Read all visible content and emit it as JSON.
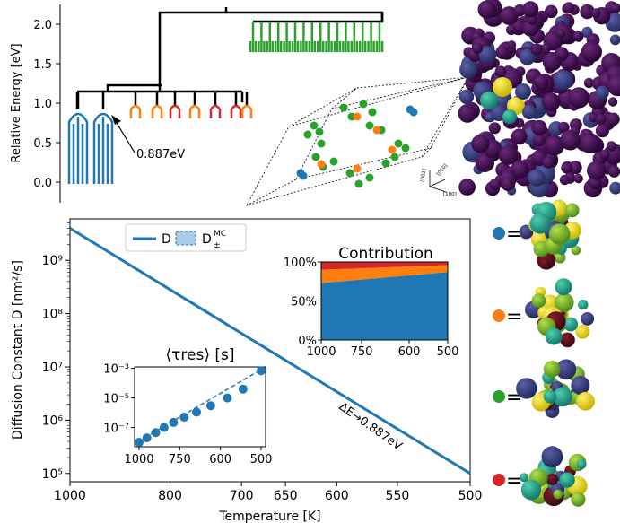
{
  "colors": {
    "blue": "#1f77b4",
    "orange": "#ff7f0e",
    "green": "#2ca02c",
    "red": "#d62728",
    "dark_red": "#b22222",
    "purple": "#3b0a4f"
  },
  "top_panel": {
    "ylabel": "Relative Energy [eV]",
    "ticks": [
      "0.0",
      "0.5",
      "1.0",
      "1.5",
      "2.0"
    ],
    "annotation": "0.887eV",
    "axes_labels": [
      "[001]",
      "[010]",
      "[100]"
    ]
  },
  "legend": {
    "d_label": "D",
    "dmc_label": "D",
    "dmc_sup": "MC",
    "dmc_sub": "±"
  },
  "annotation_line": "ΔE→0.887eV",
  "legend_eq": "=",
  "chart_data": [
    {
      "type": "line",
      "title": "",
      "xlabel": "Temperature [K]",
      "ylabel": "Diffusion Constant D [nm²/s]",
      "x_ticks": [
        "1000",
        "800",
        "700",
        "650",
        "600",
        "550",
        "500"
      ],
      "y_ticks": [
        "10⁵",
        "10⁶",
        "10⁷",
        "10⁸",
        "10⁹"
      ],
      "yscale": "log",
      "ylim": [
        70000,
        6000000000
      ],
      "series": [
        {
          "name": "D",
          "x": [
            1000,
            500
          ],
          "y": [
            4000000000,
            100000
          ]
        }
      ]
    },
    {
      "type": "area",
      "title": "Contribution",
      "x_ticks": [
        "1000",
        "750",
        "600",
        "500"
      ],
      "y_ticks": [
        "0%",
        "50%",
        "100%"
      ],
      "series": [
        {
          "color": "blue",
          "start": 0.73,
          "end": 0.87
        },
        {
          "color": "orange",
          "start": 0.17,
          "end": 0.09
        },
        {
          "color": "red",
          "start": 0.1,
          "end": 0.04
        }
      ]
    },
    {
      "type": "scatter",
      "title": "⟨τres⟩ [s]",
      "x_ticks": [
        "1000",
        "750",
        "600",
        "500"
      ],
      "y_ticks": [
        "10⁻⁷",
        "10⁻⁵",
        "10⁻³"
      ],
      "yscale": "log",
      "x": [
        1000,
        940,
        880,
        830,
        780,
        730,
        680,
        630,
        580,
        540,
        500
      ],
      "y": [
        1e-08,
        2e-08,
        4.5e-08,
        1e-07,
        2.2e-07,
        5e-07,
        1.1e-06,
        3e-06,
        1e-05,
        4e-05,
        0.0007
      ]
    }
  ]
}
